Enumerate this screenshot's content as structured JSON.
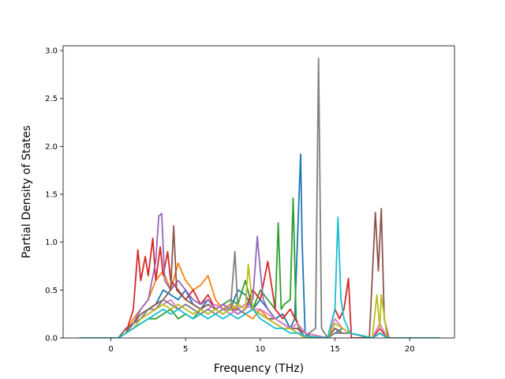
{
  "chart_data": {
    "type": "line",
    "title": "",
    "xlabel": "Frequency (THz)",
    "ylabel": "Partial Density of States",
    "xlim": [
      -3.2,
      23.0
    ],
    "ylim": [
      0.0,
      3.05
    ],
    "xticks": [
      0,
      5,
      10,
      15,
      20
    ],
    "yticks": [
      0.0,
      0.5,
      1.0,
      1.5,
      2.0,
      2.5,
      3.0
    ],
    "xtick_labels": [
      "0",
      "5",
      "10",
      "15",
      "20"
    ],
    "ytick_labels": [
      "0.0",
      "0.5",
      "1.0",
      "1.5",
      "2.0",
      "2.5",
      "3.0"
    ],
    "grid": false,
    "legend": "none",
    "series": [
      {
        "color": "#1f77b4",
        "x": [
          -2.1,
          0.5,
          1.0,
          1.5,
          2.0,
          2.5,
          3.0,
          3.5,
          4.0,
          4.5,
          5.0,
          5.5,
          6.0,
          6.5,
          7.0,
          7.5,
          8.0,
          8.5,
          9.0,
          9.5,
          10.0,
          10.5,
          11.0,
          11.5,
          12.0,
          12.3,
          12.6,
          12.7,
          12.8,
          13.0,
          13.5,
          14.5,
          15.0,
          15.5,
          16.0,
          17.5,
          18.0,
          18.5,
          22.0
        ],
        "y": [
          0,
          0,
          0.05,
          0.15,
          0.2,
          0.3,
          0.35,
          0.5,
          0.45,
          0.4,
          0.5,
          0.35,
          0.3,
          0.4,
          0.3,
          0.35,
          0.3,
          0.5,
          0.45,
          0.3,
          0.4,
          0.3,
          0.2,
          0.25,
          0.1,
          0.2,
          1.5,
          1.92,
          1.0,
          0.05,
          0,
          0,
          0.05,
          0.1,
          0.05,
          0,
          0.05,
          0,
          0
        ]
      },
      {
        "color": "#ff7f0e",
        "x": [
          -2.1,
          0.5,
          1.0,
          1.5,
          2.0,
          2.5,
          3.0,
          3.5,
          4.0,
          4.5,
          5.0,
          5.5,
          6.0,
          6.5,
          7.0,
          7.5,
          8.0,
          8.5,
          9.0,
          9.5,
          10.0,
          10.5,
          11.0,
          11.5,
          12.0,
          12.5,
          13.0,
          14.5,
          15.0,
          15.5,
          16.0,
          17.5,
          18.0,
          18.5,
          22.0
        ],
        "y": [
          0,
          0,
          0.05,
          0.2,
          0.3,
          0.4,
          0.6,
          0.7,
          0.5,
          0.78,
          0.6,
          0.5,
          0.55,
          0.65,
          0.4,
          0.3,
          0.35,
          0.3,
          0.25,
          0.2,
          0.3,
          0.2,
          0.15,
          0.1,
          0.1,
          0.05,
          0,
          0,
          0.05,
          0.05,
          0.05,
          0,
          0.05,
          0,
          0
        ]
      },
      {
        "color": "#2ca02c",
        "x": [
          -2.1,
          0.5,
          1.0,
          1.5,
          2.0,
          2.5,
          3.0,
          3.5,
          4.0,
          4.5,
          5.0,
          5.5,
          6.0,
          6.5,
          7.0,
          7.5,
          8.0,
          8.5,
          9.0,
          9.5,
          10.0,
          10.5,
          11.0,
          11.2,
          11.4,
          11.6,
          12.0,
          12.2,
          12.4,
          12.6,
          13.0,
          14.5,
          15.0,
          15.5,
          16.0,
          17.5,
          18.0,
          18.5,
          22.0
        ],
        "y": [
          0,
          0,
          0.05,
          0.1,
          0.15,
          0.2,
          0.2,
          0.25,
          0.3,
          0.2,
          0.25,
          0.2,
          0.3,
          0.25,
          0.3,
          0.35,
          0.4,
          0.35,
          0.6,
          0.3,
          0.5,
          0.4,
          0.3,
          1.2,
          0.3,
          0.35,
          0.4,
          1.46,
          0.2,
          0.1,
          0,
          0,
          0.1,
          0.05,
          0.05,
          0,
          0.05,
          0,
          0
        ]
      },
      {
        "color": "#d62728",
        "x": [
          -2.1,
          0.5,
          1.0,
          1.5,
          1.8,
          2.0,
          2.3,
          2.5,
          2.8,
          3.0,
          3.3,
          3.5,
          3.8,
          4.0,
          4.5,
          5.0,
          5.5,
          6.0,
          6.5,
          7.0,
          7.5,
          8.0,
          8.5,
          9.0,
          9.5,
          10.0,
          10.5,
          11.0,
          11.5,
          12.0,
          12.5,
          13.0,
          14.5,
          15.0,
          15.3,
          15.6,
          15.9,
          16.1,
          17.5,
          18.0,
          18.5,
          22.0
        ],
        "y": [
          0,
          0,
          0.05,
          0.3,
          0.92,
          0.6,
          0.85,
          0.65,
          1.04,
          0.6,
          0.95,
          0.65,
          0.9,
          0.6,
          0.5,
          0.4,
          0.5,
          0.35,
          0.45,
          0.3,
          0.35,
          0.3,
          0.35,
          0.3,
          0.5,
          0.4,
          0.8,
          0.3,
          0.2,
          0.3,
          0.15,
          0.05,
          0,
          0.3,
          0.2,
          0.3,
          0.62,
          0,
          0,
          0.1,
          0,
          0
        ]
      },
      {
        "color": "#9467bd",
        "x": [
          -2.1,
          0.5,
          1.0,
          1.5,
          2.0,
          2.5,
          3.0,
          3.2,
          3.4,
          3.6,
          4.0,
          4.5,
          5.0,
          5.5,
          6.0,
          6.5,
          7.0,
          7.5,
          8.0,
          8.5,
          9.0,
          9.5,
          9.8,
          10.0,
          10.2,
          10.5,
          11.0,
          11.5,
          12.0,
          12.5,
          13.0,
          14.5,
          15.0,
          15.5,
          16.0,
          17.5,
          18.0,
          18.5,
          22.0
        ],
        "y": [
          0,
          0,
          0.05,
          0.15,
          0.3,
          0.4,
          0.8,
          1.27,
          1.3,
          0.6,
          0.5,
          0.6,
          0.5,
          0.4,
          0.35,
          0.4,
          0.3,
          0.35,
          0.3,
          0.25,
          0.3,
          0.4,
          1.06,
          0.7,
          0.4,
          0.3,
          0.2,
          0.15,
          0.1,
          0.1,
          0,
          0,
          0.05,
          0.05,
          0.05,
          0,
          0.05,
          0,
          0
        ]
      },
      {
        "color": "#8c564b",
        "x": [
          -2.1,
          0.5,
          1.0,
          1.5,
          2.0,
          2.5,
          3.0,
          3.5,
          4.0,
          4.2,
          4.4,
          5.0,
          5.5,
          6.0,
          6.5,
          7.0,
          7.5,
          8.0,
          8.5,
          9.0,
          9.5,
          10.0,
          10.5,
          11.0,
          11.5,
          12.0,
          12.5,
          13.0,
          14.5,
          15.0,
          15.5,
          16.0,
          17.3,
          17.7,
          17.9,
          18.1,
          18.3,
          18.6,
          22.0
        ],
        "y": [
          0,
          0,
          0.1,
          0.15,
          0.25,
          0.3,
          0.35,
          0.4,
          0.5,
          1.17,
          0.5,
          0.4,
          0.35,
          0.3,
          0.35,
          0.3,
          0.25,
          0.3,
          0.3,
          0.25,
          0.3,
          0.25,
          0.2,
          0.2,
          0.15,
          0.1,
          0.1,
          0.05,
          0,
          0.1,
          0.05,
          0.05,
          0,
          1.31,
          0.7,
          1.35,
          0.2,
          0,
          0
        ]
      },
      {
        "color": "#e377c2",
        "x": [
          -2.1,
          0.5,
          1.0,
          1.5,
          2.0,
          2.5,
          3.0,
          3.5,
          4.0,
          4.5,
          5.0,
          5.5,
          6.0,
          6.5,
          7.0,
          7.5,
          8.0,
          8.5,
          9.0,
          9.5,
          10.0,
          10.5,
          11.0,
          11.5,
          12.0,
          12.5,
          13.0,
          14.5,
          15.0,
          15.5,
          16.0,
          17.5,
          18.0,
          18.5,
          22.0
        ],
        "y": [
          0,
          0,
          0.05,
          0.1,
          0.2,
          0.25,
          0.3,
          0.35,
          0.4,
          0.3,
          0.35,
          0.3,
          0.25,
          0.3,
          0.35,
          0.3,
          0.25,
          0.3,
          0.35,
          0.3,
          0.3,
          0.25,
          0.2,
          0.15,
          0.1,
          0.15,
          0.05,
          0,
          0.2,
          0.1,
          0.05,
          0,
          0.15,
          0,
          0
        ]
      },
      {
        "color": "#7f7f7f",
        "x": [
          -2.1,
          0.5,
          1.0,
          1.5,
          2.0,
          2.5,
          3.0,
          3.5,
          4.0,
          4.5,
          5.0,
          5.5,
          6.0,
          6.5,
          7.0,
          7.5,
          8.0,
          8.3,
          8.5,
          9.0,
          9.5,
          10.0,
          10.5,
          11.0,
          11.5,
          12.0,
          12.5,
          13.0,
          13.7,
          13.9,
          14.1,
          14.5,
          15.0,
          15.5,
          16.0,
          17.5,
          18.0,
          18.5,
          22.0
        ],
        "y": [
          0,
          0,
          0.05,
          0.15,
          0.2,
          0.3,
          0.3,
          0.4,
          0.35,
          0.3,
          0.35,
          0.3,
          0.25,
          0.3,
          0.25,
          0.3,
          0.3,
          0.9,
          0.3,
          0.25,
          0.3,
          0.25,
          0.2,
          0.15,
          0.1,
          0.1,
          0.05,
          0.02,
          0.1,
          2.92,
          0.1,
          0,
          0.05,
          0.05,
          0.05,
          0,
          0.05,
          0,
          0
        ]
      },
      {
        "color": "#bcbd22",
        "x": [
          -2.1,
          0.5,
          1.0,
          1.5,
          2.0,
          2.5,
          3.0,
          3.5,
          4.0,
          4.5,
          5.0,
          5.5,
          6.0,
          6.5,
          7.0,
          7.5,
          8.0,
          8.5,
          9.0,
          9.2,
          9.5,
          10.0,
          10.5,
          11.0,
          11.5,
          12.0,
          12.5,
          13.0,
          14.5,
          15.0,
          15.5,
          16.0,
          17.5,
          17.8,
          18.0,
          18.1,
          18.5,
          22.0
        ],
        "y": [
          0,
          0,
          0.05,
          0.1,
          0.2,
          0.25,
          0.3,
          0.35,
          0.3,
          0.35,
          0.3,
          0.25,
          0.3,
          0.25,
          0.3,
          0.25,
          0.3,
          0.35,
          0.3,
          0.77,
          0.3,
          0.25,
          0.2,
          0.15,
          0.1,
          0.1,
          0.05,
          0,
          0,
          0.15,
          0.1,
          0.05,
          0,
          0.45,
          0.1,
          0.45,
          0,
          0
        ]
      },
      {
        "color": "#17becf",
        "x": [
          -2.1,
          0.5,
          1.0,
          1.5,
          2.0,
          2.5,
          3.0,
          3.5,
          4.0,
          4.5,
          5.0,
          5.5,
          6.0,
          6.5,
          7.0,
          7.5,
          8.0,
          8.5,
          9.0,
          9.5,
          10.0,
          10.5,
          11.0,
          11.5,
          12.0,
          12.5,
          13.0,
          14.5,
          15.0,
          15.2,
          15.4,
          15.6,
          16.0,
          17.5,
          18.0,
          18.5,
          22.0
        ],
        "y": [
          0,
          0,
          0.05,
          0.1,
          0.15,
          0.2,
          0.25,
          0.3,
          0.25,
          0.3,
          0.25,
          0.2,
          0.25,
          0.2,
          0.25,
          0.2,
          0.25,
          0.2,
          0.25,
          0.3,
          0.2,
          0.15,
          0.1,
          0.1,
          0.05,
          0.05,
          0.02,
          0,
          0.3,
          1.26,
          0.4,
          0.2,
          0.05,
          0,
          0.05,
          0,
          0
        ]
      }
    ]
  }
}
